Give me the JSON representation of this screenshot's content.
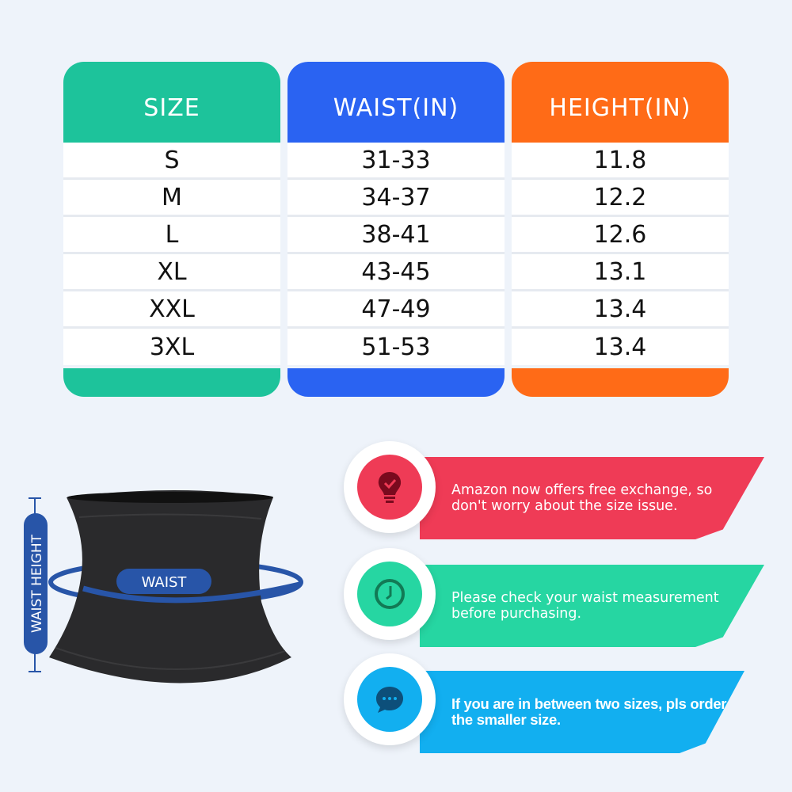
{
  "table": {
    "columns": [
      {
        "header": "SIZE",
        "color": "#1dc39b",
        "values": [
          "S",
          "M",
          "L",
          "XL",
          "XXL",
          "3XL"
        ]
      },
      {
        "header": "WAIST(IN)",
        "color": "#2a63f2",
        "values": [
          "31-33",
          "34-37",
          "38-41",
          "43-45",
          "47-49",
          "51-53"
        ]
      },
      {
        "header": "HEIGHT(IN)",
        "color": "#ff6b17",
        "values": [
          "11.8",
          "12.2",
          "12.6",
          "13.1",
          "13.4",
          "13.4"
        ]
      }
    ]
  },
  "diagram": {
    "waist_label": "WAIST",
    "waist_height_label": "WAIST HEIGHT",
    "accent": "#2855a8"
  },
  "tips": [
    {
      "icon": "lightbulb-check-icon",
      "color": "#ef3b56",
      "text": "Amazon now offers free exchange, so don't worry about the size issue."
    },
    {
      "icon": "clock-icon",
      "color": "#26d6a2",
      "text": "Please check your waist measurement before purchasing."
    },
    {
      "icon": "chat-bubble-icon",
      "color": "#12aff0",
      "text": "If you are in between two sizes, pls order the smaller size."
    }
  ]
}
